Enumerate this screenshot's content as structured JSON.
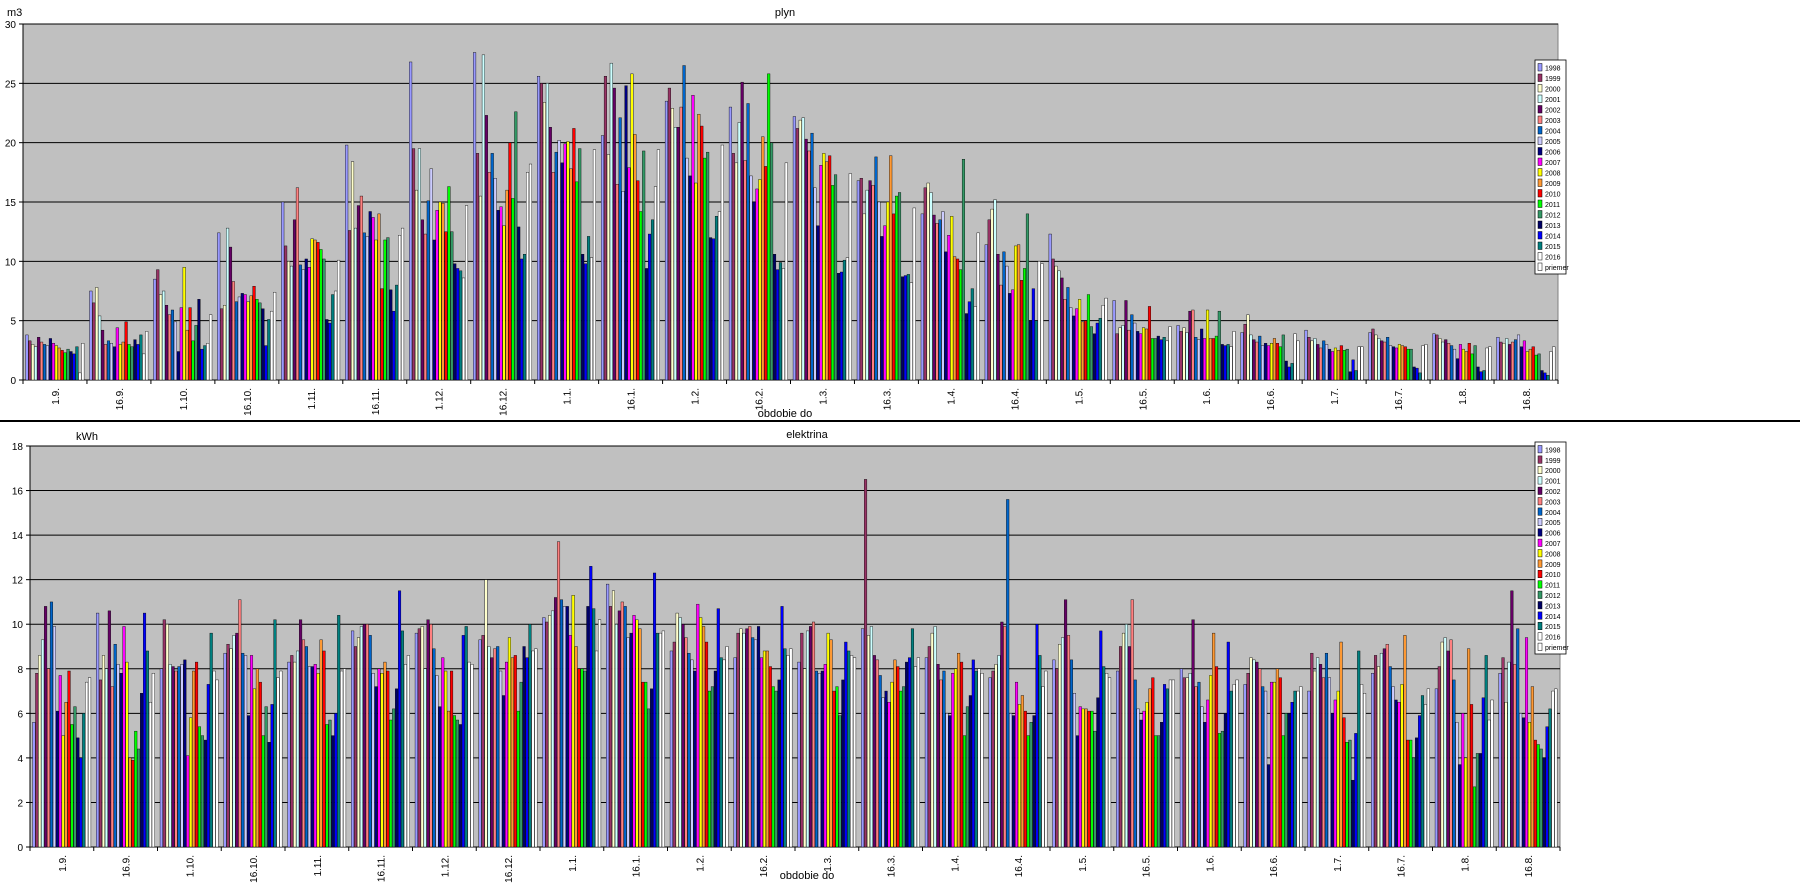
{
  "chart_data": [
    {
      "type": "bar",
      "title": "plyn",
      "unit": "m3",
      "xlabel": "obdobie do",
      "ylim": [
        0,
        30
      ],
      "yticks": [
        0,
        5,
        10,
        15,
        20,
        25,
        30
      ],
      "grid": true,
      "legend_position": "right",
      "background": "#c0c0c0",
      "categories": [
        "1.9.",
        "16.9.",
        "1.10.",
        "16.10.",
        "1.11.",
        "16.11.",
        "1.12.",
        "16.12.",
        "1.1.",
        "16.1.",
        "1.2.",
        "16.2.",
        "1.3.",
        "16.3.",
        "1.4.",
        "16.4.",
        "1.5.",
        "16.5.",
        "1.6.",
        "16.6.",
        "1.7.",
        "16.7.",
        "1.8.",
        "16.8."
      ],
      "series_names": [
        "1998",
        "1999",
        "2000",
        "2001",
        "2002",
        "2003",
        "2004",
        "2005",
        "2006",
        "2007",
        "2008",
        "2009",
        "2010",
        "2011",
        "2012",
        "2013",
        "2014",
        "2015",
        "2016",
        "priemer"
      ],
      "series_colors": [
        "#9999ff",
        "#993366",
        "#ffffcc",
        "#ccffff",
        "#660066",
        "#ff8080",
        "#0066cc",
        "#ccccff",
        "#000080",
        "#ff00ff",
        "#ffff00",
        "#ff9933",
        "#ff0000",
        "#00ff00",
        "#339966",
        "#000066",
        "#0000ff",
        "#008080",
        "#ffffff",
        "#ffffff"
      ],
      "values": [
        [
          3.8,
          3.3,
          3.0,
          2.8,
          3.6,
          3.2,
          3.0,
          2.9,
          3.5,
          3.1,
          2.9,
          2.7,
          2.5,
          2.3,
          2.6,
          2.4,
          2.2,
          2.8,
          0.6,
          3.1
        ],
        [
          7.5,
          6.5,
          7.8,
          5.4,
          4.2,
          3.0,
          3.3,
          3.1,
          2.8,
          4.4,
          3.0,
          3.2,
          4.9,
          3.0,
          2.8,
          3.4,
          3.0,
          3.8,
          2.2,
          4.1
        ],
        [
          8.5,
          9.3,
          7.2,
          7.5,
          6.3,
          5.5,
          5.9,
          4.9,
          2.4,
          6.1,
          9.5,
          4.2,
          6.1,
          3.3,
          4.6,
          6.8,
          2.6,
          2.9,
          3.1,
          5.5
        ],
        [
          12.4,
          6.0,
          6.3,
          12.8,
          11.2,
          8.3,
          6.6,
          7.0,
          7.3,
          7.2,
          6.6,
          7.1,
          7.9,
          6.8,
          6.5,
          6.0,
          2.9,
          5.1,
          5.8,
          7.4
        ],
        [
          15.0,
          11.3,
          10.0,
          9.6,
          13.5,
          16.2,
          9.7,
          9.3,
          10.2,
          9.5,
          11.9,
          11.8,
          11.6,
          11.0,
          10.2,
          5.1,
          4.8,
          7.2,
          7.5,
          10.1
        ],
        [
          19.8,
          12.6,
          18.4,
          12.8,
          14.7,
          15.5,
          12.4,
          12.1,
          14.2,
          13.7,
          11.8,
          14.0,
          7.7,
          11.8,
          12.0,
          7.6,
          5.8,
          8.0,
          12.2,
          12.8
        ],
        [
          26.8,
          19.5,
          16.0,
          19.5,
          13.5,
          12.3,
          15.1,
          17.8,
          11.8,
          14.3,
          15.0,
          14.9,
          12.5,
          16.3,
          12.5,
          9.8,
          9.4,
          9.2,
          8.6,
          14.7
        ],
        [
          27.6,
          19.1,
          15.5,
          27.4,
          22.3,
          17.5,
          19.1,
          17.0,
          14.3,
          14.6,
          13.0,
          16.0,
          20.0,
          15.3,
          22.6,
          12.9,
          10.2,
          10.6,
          17.5,
          18.2
        ],
        [
          25.6,
          25.0,
          23.4,
          25.0,
          21.3,
          17.5,
          19.2,
          20.2,
          18.3,
          19.9,
          20.1,
          17.8,
          21.2,
          16.7,
          19.5,
          10.6,
          9.8,
          12.1,
          10.3,
          19.4
        ],
        [
          20.6,
          25.6,
          19.0,
          26.7,
          24.6,
          16.5,
          22.1,
          15.9,
          24.8,
          17.9,
          25.8,
          20.7,
          16.8,
          14.2,
          19.3,
          9.4,
          12.3,
          13.5,
          16.3,
          19.4
        ],
        [
          23.5,
          24.6,
          22.9,
          21.3,
          21.3,
          23.0,
          26.5,
          18.7,
          17.2,
          24.0,
          16.6,
          22.4,
          21.4,
          18.7,
          19.2,
          12.0,
          11.9,
          13.8,
          14.2,
          19.8
        ],
        [
          23.0,
          19.1,
          18.3,
          21.7,
          25.1,
          18.5,
          23.3,
          17.2,
          15.0,
          16.1,
          16.9,
          20.5,
          18.0,
          25.8,
          20.0,
          10.6,
          9.3,
          9.9,
          9.4,
          18.3
        ],
        [
          22.2,
          21.2,
          21.9,
          22.1,
          20.3,
          19.3,
          20.8,
          16.2,
          13.0,
          18.1,
          19.1,
          18.4,
          18.9,
          16.4,
          17.3,
          9.0,
          9.1,
          10.1,
          10.3,
          17.4
        ],
        [
          16.8,
          17.0,
          14.0,
          16.0,
          16.8,
          16.4,
          18.8,
          15.0,
          12.1,
          13.0,
          15.0,
          18.9,
          14.0,
          15.5,
          15.8,
          8.7,
          8.8,
          8.9,
          8.2,
          14.5
        ],
        [
          14.0,
          16.2,
          16.6,
          15.8,
          13.9,
          13.2,
          13.5,
          14.2,
          10.8,
          12.2,
          13.8,
          10.4,
          10.2,
          9.3,
          18.6,
          5.6,
          6.6,
          7.7,
          6.2,
          12.4
        ],
        [
          11.4,
          13.5,
          14.4,
          15.2,
          10.6,
          8.0,
          10.8,
          9.6,
          7.3,
          7.6,
          11.3,
          11.4,
          8.4,
          9.4,
          14.0,
          5.0,
          7.7,
          5.0,
          10.0,
          9.8
        ],
        [
          12.3,
          10.2,
          9.6,
          9.2,
          8.6,
          6.8,
          7.8,
          6.1,
          5.4,
          6.0,
          6.8,
          4.9,
          5.0,
          7.2,
          4.5,
          3.9,
          4.8,
          5.2,
          6.3,
          6.9
        ],
        [
          6.7,
          3.9,
          4.4,
          4.6,
          6.7,
          4.2,
          5.5,
          4.8,
          4.1,
          3.9,
          4.4,
          4.3,
          6.2,
          3.5,
          3.5,
          3.7,
          3.4,
          3.6,
          3.3,
          4.5
        ],
        [
          4.6,
          4.1,
          4.4,
          4.0,
          5.8,
          5.9,
          3.6,
          3.4,
          4.3,
          3.5,
          5.9,
          3.5,
          3.5,
          3.7,
          5.8,
          3.0,
          2.9,
          3.0,
          2.8,
          4.1
        ],
        [
          4.0,
          4.7,
          5.5,
          3.8,
          3.4,
          3.2,
          3.7,
          2.9,
          3.1,
          2.9,
          3.1,
          3.5,
          3.1,
          2.8,
          3.8,
          1.6,
          1.1,
          1.4,
          3.9,
          3.3
        ],
        [
          4.2,
          3.6,
          3.3,
          3.5,
          3.0,
          2.7,
          3.3,
          3.0,
          2.6,
          2.4,
          2.7,
          2.5,
          2.9,
          2.5,
          2.6,
          0.7,
          1.7,
          0.8,
          2.8,
          2.8
        ],
        [
          4.0,
          4.3,
          3.8,
          3.5,
          3.3,
          3.2,
          3.6,
          2.9,
          2.8,
          2.7,
          3.0,
          2.9,
          2.8,
          2.6,
          2.6,
          1.1,
          1.0,
          0.6,
          2.9,
          3.0
        ],
        [
          3.9,
          3.8,
          3.5,
          3.2,
          3.4,
          3.1,
          2.9,
          2.6,
          1.8,
          3.0,
          2.6,
          2.4,
          3.1,
          2.2,
          2.9,
          1.1,
          0.7,
          0.8,
          2.7,
          2.8
        ],
        [
          3.6,
          3.2,
          3.1,
          3.5,
          3.0,
          3.2,
          3.4,
          3.8,
          2.8,
          3.3,
          2.4,
          2.6,
          2.8,
          2.1,
          2.2,
          0.8,
          0.6,
          0.4,
          2.4,
          2.8
        ]
      ]
    },
    {
      "type": "bar",
      "title": "elektrina",
      "unit": "kWh",
      "xlabel": "obdobie do",
      "ylim": [
        0,
        18
      ],
      "yticks": [
        0,
        2,
        4,
        6,
        8,
        10,
        12,
        14,
        16,
        18
      ],
      "grid": true,
      "legend_position": "right",
      "background": "#c0c0c0",
      "categories": [
        "1.9.",
        "16.9.",
        "1.10.",
        "16.10.",
        "1.11.",
        "16.11.",
        "1.12.",
        "16.12.",
        "1.1.",
        "16.1.",
        "1.2.",
        "16.2.",
        "1.3.",
        "16.3.",
        "1.4.",
        "16.4.",
        "1.5.",
        "16.5.",
        "1.6.",
        "16.6.",
        "1.7.",
        "16.7.",
        "1.8.",
        "16.8."
      ],
      "series_names": [
        "1998",
        "1999",
        "2000",
        "2001",
        "2002",
        "2003",
        "2004",
        "2005",
        "2006",
        "2007",
        "2008",
        "2009",
        "2010",
        "2011",
        "2012",
        "2013",
        "2014",
        "2015",
        "2016",
        "priemer"
      ],
      "series_colors": [
        "#9999ff",
        "#993366",
        "#ffffcc",
        "#ccffff",
        "#660066",
        "#ff8080",
        "#0066cc",
        "#ccccff",
        "#000080",
        "#ff00ff",
        "#ffff00",
        "#ff9933",
        "#ff0000",
        "#00ff00",
        "#339966",
        "#000066",
        "#0000ff",
        "#008080",
        "#ffffff",
        "#ffffff"
      ],
      "values": [
        [
          5.6,
          7.8,
          8.6,
          9.3,
          10.8,
          8.0,
          11.0,
          9.9,
          6.1,
          7.7,
          5.0,
          6.5,
          7.9,
          5.5,
          6.3,
          4.9,
          4.0,
          6.0,
          7.4,
          7.6
        ],
        [
          10.5,
          7.5,
          8.6,
          8.0,
          10.6,
          7.2,
          9.1,
          8.2,
          7.8,
          9.9,
          8.3,
          4.0,
          3.9,
          5.2,
          4.4,
          6.9,
          10.5,
          8.8,
          6.5,
          7.8
        ],
        [
          8.0,
          10.2,
          10.0,
          8.2,
          8.1,
          7.9,
          8.1,
          8.2,
          8.4,
          4.1,
          5.8,
          7.9,
          8.3,
          5.4,
          5.0,
          4.8,
          7.3,
          9.6,
          7.9,
          7.5
        ],
        [
          8.7,
          9.1,
          8.9,
          9.5,
          9.6,
          11.1,
          8.7,
          8.6,
          5.9,
          8.6,
          7.1,
          8.0,
          7.4,
          5.0,
          6.3,
          4.7,
          6.4,
          10.2,
          7.6,
          7.9
        ],
        [
          8.3,
          8.6,
          8.3,
          8.8,
          10.2,
          9.3,
          9.0,
          8.1,
          8.1,
          8.2,
          7.8,
          9.3,
          8.8,
          5.5,
          5.7,
          5.0,
          6.0,
          10.4,
          7.9,
          8.0
        ],
        [
          9.7,
          9.0,
          9.4,
          9.9,
          10.0,
          10.0,
          9.5,
          7.8,
          7.2,
          8.0,
          7.8,
          8.3,
          7.9,
          5.7,
          6.2,
          7.1,
          11.5,
          9.7,
          8.2,
          8.6
        ],
        [
          9.6,
          9.8,
          9.9,
          8.0,
          10.2,
          10.0,
          8.9,
          7.7,
          6.3,
          8.5,
          7.9,
          6.1,
          7.9,
          5.9,
          5.7,
          5.5,
          9.5,
          9.9,
          8.3,
          8.2
        ],
        [
          9.3,
          9.5,
          12.0,
          9.0,
          8.5,
          8.9,
          9.0,
          7.9,
          6.8,
          8.3,
          9.4,
          8.5,
          8.6,
          6.1,
          7.4,
          9.0,
          8.5,
          10.0,
          8.8,
          8.9
        ],
        [
          10.3,
          10.1,
          10.4,
          10.6,
          11.2,
          13.7,
          11.1,
          10.8,
          10.8,
          9.5,
          11.3,
          9.0,
          8.0,
          8.0,
          7.9,
          10.8,
          12.6,
          10.7,
          8.8,
          10.2
        ],
        [
          11.8,
          10.8,
          11.5,
          10.0,
          10.6,
          11.0,
          10.8,
          9.4,
          9.6,
          10.4,
          10.2,
          9.8,
          7.4,
          7.4,
          6.2,
          7.1,
          12.3,
          9.6,
          9.6,
          9.7
        ],
        [
          8.8,
          9.2,
          10.5,
          10.3,
          10.0,
          9.4,
          8.7,
          8.4,
          7.9,
          10.9,
          10.3,
          9.9,
          9.2,
          7.0,
          7.2,
          7.9,
          10.7,
          8.5,
          8.4,
          9.0
        ],
        [
          8.5,
          9.6,
          9.8,
          9.6,
          9.8,
          9.9,
          9.4,
          9.3,
          9.9,
          8.5,
          8.8,
          8.8,
          8.1,
          7.2,
          7.0,
          7.5,
          10.8,
          8.9,
          8.6,
          8.9
        ],
        [
          8.3,
          9.6,
          8.0,
          9.7,
          9.9,
          10.1,
          7.9,
          7.8,
          7.9,
          8.2,
          9.6,
          9.3,
          7.0,
          7.2,
          5.9,
          7.5,
          9.2,
          8.8,
          8.6,
          8.5
        ],
        [
          9.8,
          16.5,
          9.5,
          9.9,
          8.6,
          8.4,
          7.7,
          6.7,
          7.0,
          6.5,
          7.4,
          8.4,
          8.1,
          7.0,
          7.2,
          8.3,
          8.5,
          9.8,
          8.1,
          8.5
        ],
        [
          8.5,
          9.0,
          9.6,
          9.9,
          8.2,
          7.5,
          7.9,
          6.0,
          5.9,
          7.8,
          8.0,
          8.7,
          8.3,
          5.0,
          6.3,
          6.8,
          8.4,
          7.9,
          8.0,
          7.8
        ],
        [
          7.6,
          7.9,
          8.2,
          8.6,
          10.1,
          9.9,
          15.6,
          6.0,
          5.9,
          7.4,
          6.4,
          6.8,
          6.1,
          5.0,
          5.6,
          5.9,
          10.0,
          8.6,
          7.2,
          7.9
        ],
        [
          8.4,
          8.0,
          9.1,
          9.4,
          11.1,
          9.5,
          8.4,
          6.9,
          5.0,
          6.3,
          6.2,
          6.2,
          6.1,
          6.1,
          5.2,
          6.7,
          9.7,
          8.1,
          7.8,
          7.6
        ],
        [
          7.9,
          9.0,
          9.6,
          10.0,
          9.0,
          11.1,
          7.5,
          6.2,
          5.7,
          6.1,
          6.5,
          7.1,
          7.6,
          5.0,
          5.0,
          5.6,
          7.3,
          7.1,
          7.5,
          7.5
        ],
        [
          8.0,
          7.6,
          7.6,
          7.8,
          10.2,
          7.2,
          7.4,
          6.3,
          5.6,
          6.6,
          7.7,
          9.6,
          8.1,
          5.1,
          5.2,
          6.0,
          9.2,
          7.0,
          7.3,
          7.5
        ],
        [
          7.3,
          7.8,
          8.5,
          8.4,
          8.3,
          8.0,
          7.2,
          7.0,
          3.7,
          7.4,
          7.4,
          8.0,
          7.6,
          5.0,
          6.0,
          6.0,
          6.5,
          7.0,
          7.0,
          7.2
        ],
        [
          7.0,
          8.7,
          7.9,
          8.5,
          8.2,
          7.6,
          8.7,
          7.6,
          6.0,
          6.6,
          7.0,
          9.2,
          5.8,
          4.7,
          4.8,
          3.0,
          5.1,
          8.8,
          7.3,
          6.9
        ],
        [
          7.8,
          8.6,
          8.1,
          8.7,
          8.9,
          9.1,
          8.1,
          7.2,
          6.6,
          6.5,
          7.3,
          9.5,
          4.8,
          4.8,
          4.0,
          4.9,
          5.9,
          6.8,
          6.4,
          7.1
        ],
        [
          7.1,
          8.1,
          9.2,
          9.4,
          8.8,
          9.3,
          7.5,
          5.6,
          3.7,
          6.0,
          4.0,
          8.9,
          6.4,
          2.7,
          4.2,
          4.2,
          6.7,
          8.6,
          5.7,
          6.6
        ],
        [
          7.8,
          8.5,
          6.5,
          8.3,
          11.5,
          8.2,
          9.8,
          6.0,
          5.8,
          9.4,
          5.6,
          7.2,
          4.8,
          4.6,
          4.4,
          4.0,
          5.4,
          6.2,
          7.0,
          7.1
        ]
      ]
    }
  ]
}
